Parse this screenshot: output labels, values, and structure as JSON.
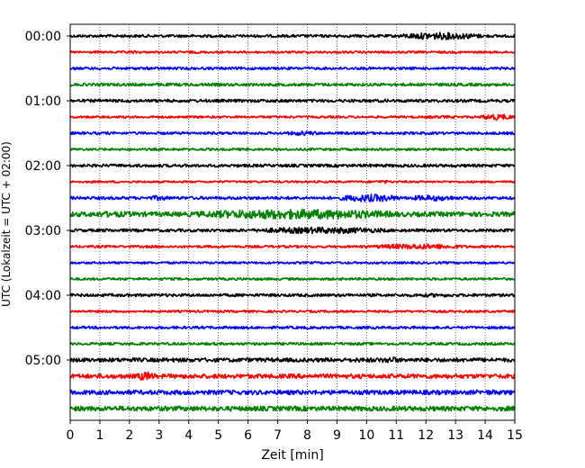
{
  "chart_data": {
    "type": "line",
    "title": "",
    "xlabel": "Zeit  [min]",
    "ylabel": "UTC (Lokalzeit = UTC + 02:00)",
    "xlim": [
      0,
      15
    ],
    "x_ticks": [
      "0",
      "1",
      "2",
      "3",
      "4",
      "5",
      "6",
      "7",
      "8",
      "9",
      "10",
      "11",
      "12",
      "13",
      "14",
      "15"
    ],
    "y_ticks": [
      "00:00",
      "01:00",
      "02:00",
      "03:00",
      "04:00",
      "05:00"
    ],
    "grid": "vertical dotted",
    "trace_interval_min": 15,
    "trace_colors": [
      "#000000",
      "#ff0000",
      "#0000ff",
      "#008000"
    ],
    "traces": [
      {
        "start": "00:00",
        "color": "#000000",
        "base": 1.5,
        "bursts": [
          [
            11,
            14,
            4
          ]
        ]
      },
      {
        "start": "00:15",
        "color": "#ff0000",
        "base": 1.2,
        "bursts": [
          [
            1.5,
            2.6,
            1.6
          ],
          [
            3.6,
            4.6,
            1.4
          ]
        ]
      },
      {
        "start": "00:30",
        "color": "#0000ff",
        "base": 1.4,
        "bursts": []
      },
      {
        "start": "00:45",
        "color": "#008000",
        "base": 1.6,
        "bursts": [
          [
            0,
            1.2,
            1.5
          ]
        ]
      },
      {
        "start": "01:00",
        "color": "#000000",
        "base": 1.6,
        "bursts": [
          [
            2.4,
            3.4,
            1.4
          ]
        ]
      },
      {
        "start": "01:15",
        "color": "#ff0000",
        "base": 1.2,
        "bursts": [
          [
            11.5,
            13.5,
            1.6
          ],
          [
            13.8,
            15,
            3.4
          ]
        ]
      },
      {
        "start": "01:30",
        "color": "#0000ff",
        "base": 1.4,
        "bursts": [
          [
            7.2,
            8.5,
            2.5
          ]
        ]
      },
      {
        "start": "01:45",
        "color": "#008000",
        "base": 1.3,
        "bursts": []
      },
      {
        "start": "02:00",
        "color": "#000000",
        "base": 1.6,
        "bursts": [
          [
            9.6,
            10.6,
            1.8
          ],
          [
            5.6,
            6.8,
            1.3
          ]
        ]
      },
      {
        "start": "02:15",
        "color": "#ff0000",
        "base": 1.1,
        "bursts": [
          [
            10.2,
            10.9,
            1.8
          ],
          [
            1.2,
            2.0,
            1.2
          ]
        ]
      },
      {
        "start": "02:30",
        "color": "#0000ff",
        "base": 1.6,
        "bursts": [
          [
            2.6,
            3.4,
            2.8
          ],
          [
            9.0,
            11.2,
            4.2
          ],
          [
            11.3,
            13.2,
            3.2
          ]
        ]
      },
      {
        "start": "02:45",
        "color": "#008000",
        "base": 2.6,
        "bursts": [
          [
            0,
            2.8,
            3.2
          ],
          [
            3.8,
            11.5,
            5.5
          ]
        ]
      },
      {
        "start": "03:00",
        "color": "#000000",
        "base": 1.6,
        "bursts": [
          [
            1.0,
            1.5,
            2.0
          ],
          [
            6.0,
            11.0,
            3.6
          ]
        ]
      },
      {
        "start": "03:15",
        "color": "#ff0000",
        "base": 1.3,
        "bursts": [
          [
            2.6,
            3.0,
            1.6
          ],
          [
            10.0,
            13.5,
            3.0
          ]
        ]
      },
      {
        "start": "03:30",
        "color": "#0000ff",
        "base": 1.2,
        "bursts": []
      },
      {
        "start": "03:45",
        "color": "#008000",
        "base": 1.3,
        "bursts": []
      },
      {
        "start": "04:00",
        "color": "#000000",
        "base": 1.6,
        "bursts": [
          [
            11.0,
            13.6,
            2.0
          ]
        ]
      },
      {
        "start": "04:15",
        "color": "#ff0000",
        "base": 1.2,
        "bursts": [
          [
            1.0,
            1.8,
            1.6
          ],
          [
            4.8,
            5.2,
            1.5
          ]
        ]
      },
      {
        "start": "04:30",
        "color": "#0000ff",
        "base": 1.4,
        "bursts": [
          [
            14.0,
            15.0,
            1.6
          ]
        ]
      },
      {
        "start": "04:45",
        "color": "#008000",
        "base": 1.4,
        "bursts": [
          [
            2.0,
            2.6,
            1.8
          ]
        ]
      },
      {
        "start": "05:00",
        "color": "#000000",
        "base": 2.2,
        "bursts": [
          [
            8.0,
            12.0,
            2.4
          ],
          [
            10.4,
            11.2,
            3.6
          ]
        ]
      },
      {
        "start": "05:15",
        "color": "#ff0000",
        "base": 2.4,
        "bursts": [
          [
            2.2,
            2.9,
            5.0
          ]
        ]
      },
      {
        "start": "05:30",
        "color": "#0000ff",
        "base": 2.4,
        "bursts": [
          [
            13.5,
            15.0,
            2.8
          ]
        ]
      },
      {
        "start": "05:45",
        "color": "#008000",
        "base": 2.6,
        "bursts": []
      }
    ]
  }
}
